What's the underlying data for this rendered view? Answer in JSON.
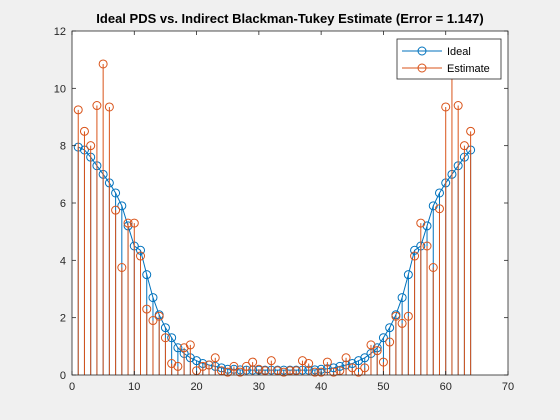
{
  "window": {
    "background": "#f0f0f0"
  },
  "chart_data": {
    "type": "stem",
    "title": "Ideal PDS vs. Indirect Blackman-Tukey Estimate (Error =  1.147)",
    "xlabel": "",
    "ylabel": "",
    "xlim": [
      0,
      70
    ],
    "ylim": [
      0,
      12
    ],
    "xticks": [
      0,
      10,
      20,
      30,
      40,
      50,
      60,
      70
    ],
    "yticks": [
      0,
      2,
      4,
      6,
      8,
      10,
      12
    ],
    "grid": false,
    "legend_position": "top-right",
    "series": [
      {
        "name": "Ideal",
        "color": "#0072BD",
        "marker": "circle",
        "x": [
          1,
          2,
          3,
          4,
          5,
          6,
          7,
          8,
          9,
          10,
          11,
          12,
          13,
          14,
          15,
          16,
          17,
          18,
          19,
          20,
          21,
          22,
          23,
          24,
          25,
          26,
          27,
          28,
          29,
          30,
          31,
          32,
          33,
          34,
          35,
          36,
          37,
          38,
          39,
          40,
          41,
          42,
          43,
          44,
          45,
          46,
          47,
          48,
          49,
          50,
          51,
          52,
          53,
          54,
          55,
          56,
          57,
          58,
          59,
          60,
          61,
          62,
          63,
          64
        ],
        "values": [
          7.95,
          7.85,
          7.6,
          7.3,
          7.0,
          6.7,
          6.35,
          5.9,
          5.2,
          4.5,
          4.35,
          3.5,
          2.7,
          2.1,
          1.65,
          1.3,
          0.95,
          0.75,
          0.6,
          0.5,
          0.4,
          0.35,
          0.3,
          0.25,
          0.2,
          0.2,
          0.18,
          0.17,
          0.17,
          0.17,
          0.17,
          0.17,
          0.17,
          0.17,
          0.17,
          0.17,
          0.17,
          0.17,
          0.18,
          0.2,
          0.22,
          0.25,
          0.3,
          0.35,
          0.4,
          0.5,
          0.6,
          0.75,
          0.95,
          1.3,
          1.65,
          2.1,
          2.7,
          3.5,
          4.35,
          4.5,
          5.2,
          5.9,
          6.35,
          6.7,
          7.0,
          7.3,
          7.6,
          7.85
        ]
      },
      {
        "name": "Estimate",
        "color": "#D95319",
        "marker": "circle",
        "x": [
          1,
          2,
          3,
          4,
          5,
          6,
          7,
          8,
          9,
          10,
          11,
          12,
          13,
          14,
          15,
          16,
          17,
          18,
          19,
          20,
          21,
          22,
          23,
          24,
          25,
          26,
          27,
          28,
          29,
          30,
          31,
          32,
          33,
          34,
          35,
          36,
          37,
          38,
          39,
          40,
          41,
          42,
          43,
          44,
          45,
          46,
          47,
          48,
          49,
          50,
          51,
          52,
          53,
          54,
          55,
          56,
          57,
          58,
          59,
          60,
          61,
          62,
          63,
          64
        ],
        "values": [
          9.25,
          8.5,
          8.0,
          9.4,
          10.85,
          9.35,
          5.75,
          3.75,
          5.3,
          5.3,
          4.15,
          2.3,
          1.9,
          2.05,
          1.3,
          0.4,
          0.3,
          0.95,
          1.05,
          0.15,
          0.3,
          0.35,
          0.6,
          0.15,
          0.1,
          0.3,
          0.1,
          0.3,
          0.45,
          0.2,
          0.15,
          0.5,
          0.15,
          0.1,
          0.15,
          0.15,
          0.5,
          0.4,
          0.1,
          0.1,
          0.45,
          0.1,
          0.15,
          0.6,
          0.25,
          0.1,
          0.25,
          1.05,
          0.85,
          0.45,
          1.15,
          2.05,
          1.8,
          2.05,
          4.15,
          5.3,
          4.5,
          3.75,
          5.8,
          9.35,
          10.5,
          9.4,
          8.0,
          8.5
        ]
      }
    ]
  }
}
